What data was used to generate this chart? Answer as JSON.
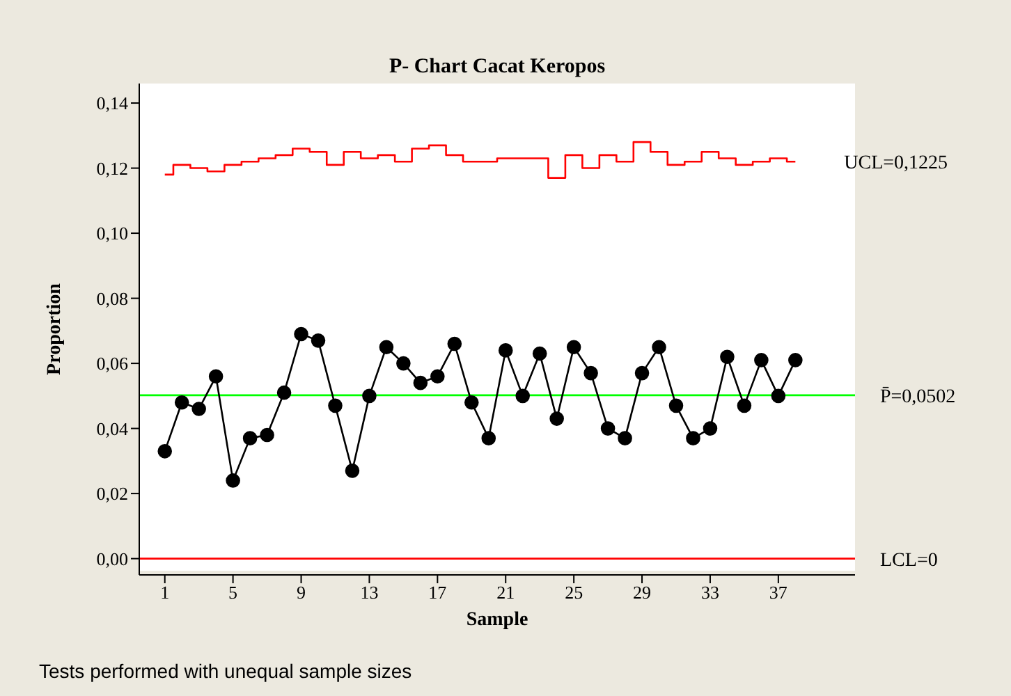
{
  "chart_data": {
    "type": "line",
    "title": "P- Chart Cacat Keropos",
    "xlabel": "Sample",
    "ylabel": "Proportion",
    "x": [
      1,
      2,
      3,
      4,
      5,
      6,
      7,
      8,
      9,
      10,
      11,
      12,
      13,
      14,
      15,
      16,
      17,
      18,
      19,
      20,
      21,
      22,
      23,
      24,
      25,
      26,
      27,
      28,
      29,
      30,
      31,
      32,
      33,
      34,
      35,
      36,
      37,
      38
    ],
    "series": [
      {
        "type": "step",
        "name": "UCL=0,1225",
        "color": "#ff0000",
        "marker": "none",
        "values": [
          0.118,
          0.121,
          0.12,
          0.119,
          0.121,
          0.122,
          0.123,
          0.124,
          0.126,
          0.125,
          0.121,
          0.125,
          0.123,
          0.124,
          0.122,
          0.126,
          0.127,
          0.124,
          0.122,
          0.122,
          0.123,
          0.123,
          0.123,
          0.117,
          0.124,
          0.12,
          0.124,
          0.122,
          0.128,
          0.125,
          0.121,
          0.122,
          0.125,
          0.123,
          0.121,
          0.122,
          0.123,
          0.122
        ]
      },
      {
        "type": "line",
        "color": "#000000",
        "marker": "circle",
        "values": [
          0.033,
          0.048,
          0.046,
          0.056,
          0.024,
          0.037,
          0.038,
          0.051,
          0.069,
          0.067,
          0.047,
          0.027,
          0.05,
          0.065,
          0.06,
          0.054,
          0.056,
          0.066,
          0.048,
          0.037,
          0.064,
          0.05,
          0.063,
          0.043,
          0.065,
          0.057,
          0.04,
          0.037,
          0.057,
          0.065,
          0.047,
          0.037,
          0.04,
          0.062,
          0.047,
          0.061,
          0.05,
          0.061
        ]
      }
    ],
    "ref_lines": [
      {
        "axis": "y",
        "value": 0.0502,
        "label": "P̄=0,0502",
        "color": "#00ff00"
      },
      {
        "axis": "y",
        "value": 0,
        "label": "LCL=0",
        "color": "#ff0000"
      }
    ],
    "xlim": [
      -0.5,
      41.5
    ],
    "xticks": [
      1,
      5,
      9,
      13,
      17,
      21,
      25,
      29,
      33,
      37
    ],
    "ylim": [
      -0.005,
      0.146
    ],
    "yticks": [
      {
        "value": 0,
        "label": "0,00"
      },
      {
        "value": 0.02,
        "label": "0,02"
      },
      {
        "value": 0.04,
        "label": "0,04"
      },
      {
        "value": 0.06,
        "label": "0,06"
      },
      {
        "value": 0.08,
        "label": "0,08"
      },
      {
        "value": 0.1,
        "label": "0,10"
      },
      {
        "value": 0.12,
        "label": "0,12"
      },
      {
        "value": 0.14,
        "label": "0,14"
      }
    ],
    "annotations": [
      "Tests performed with unequal sample sizes"
    ]
  }
}
